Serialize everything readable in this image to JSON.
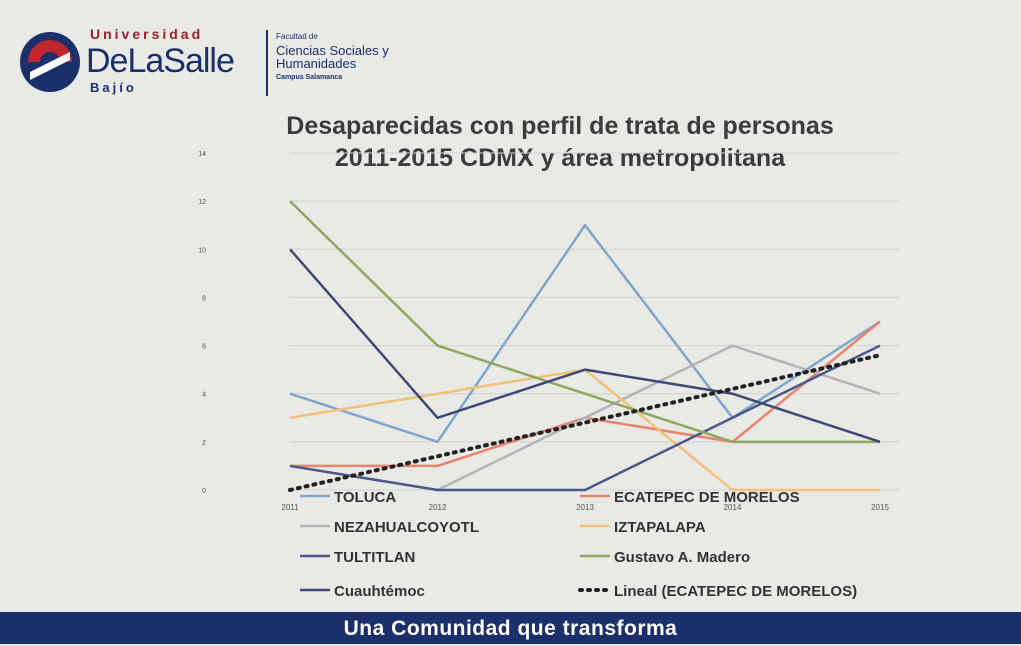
{
  "logo": {
    "line1": "Universidad",
    "line2": "DeLaSalle",
    "line3": "Bajío",
    "faculty_small": "Facultad de",
    "faculty_name": "Ciencias Sociales y Humanidades",
    "campus": "Campus Salamanca"
  },
  "footer": {
    "text": "Una Comunidad que transforma"
  },
  "chart_data": {
    "type": "line",
    "title_line1": "Desaparecidas con perfil de trata de personas",
    "title_line2": "2011-2015 CDMX y área metropolitana",
    "x": [
      "2011",
      "2012",
      "2013",
      "2014",
      "2015"
    ],
    "ylim": [
      0,
      14
    ],
    "yticks": [
      "0",
      "2",
      "4",
      "6",
      "8",
      "10",
      "12",
      "14"
    ],
    "grid": true,
    "legend_position": "bottom",
    "series": [
      {
        "name": "TOLUCA",
        "color": "#7fa7c9",
        "values": [
          4,
          2,
          11,
          3,
          7
        ]
      },
      {
        "name": "ECATEPEC DE MORELOS",
        "color": "#e8836e",
        "values": [
          1,
          1,
          3,
          2,
          7
        ]
      },
      {
        "name": "NEZAHUALCOYOTL",
        "color": "#b4b4b4",
        "values": [
          1,
          0,
          3,
          6,
          4
        ]
      },
      {
        "name": "IZTAPALAPA",
        "color": "#f2c27a",
        "values": [
          3,
          4,
          5,
          0,
          0
        ]
      },
      {
        "name": "TULTITLAN",
        "color": "#4a5a88",
        "values": [
          1,
          0,
          0,
          3,
          6
        ]
      },
      {
        "name": "Gustavo A. Madero",
        "color": "#8ea860",
        "values": [
          12,
          6,
          4,
          2,
          2
        ]
      },
      {
        "name": "Cuauhtémoc",
        "color": "#3e4a75",
        "values": [
          10,
          3,
          5,
          4,
          2
        ]
      }
    ],
    "trendline": {
      "name": "Lineal (ECATEPEC DE MORELOS)",
      "color": "#222222",
      "values": [
        0,
        1.4,
        2.8,
        4.2,
        5.6
      ]
    }
  }
}
